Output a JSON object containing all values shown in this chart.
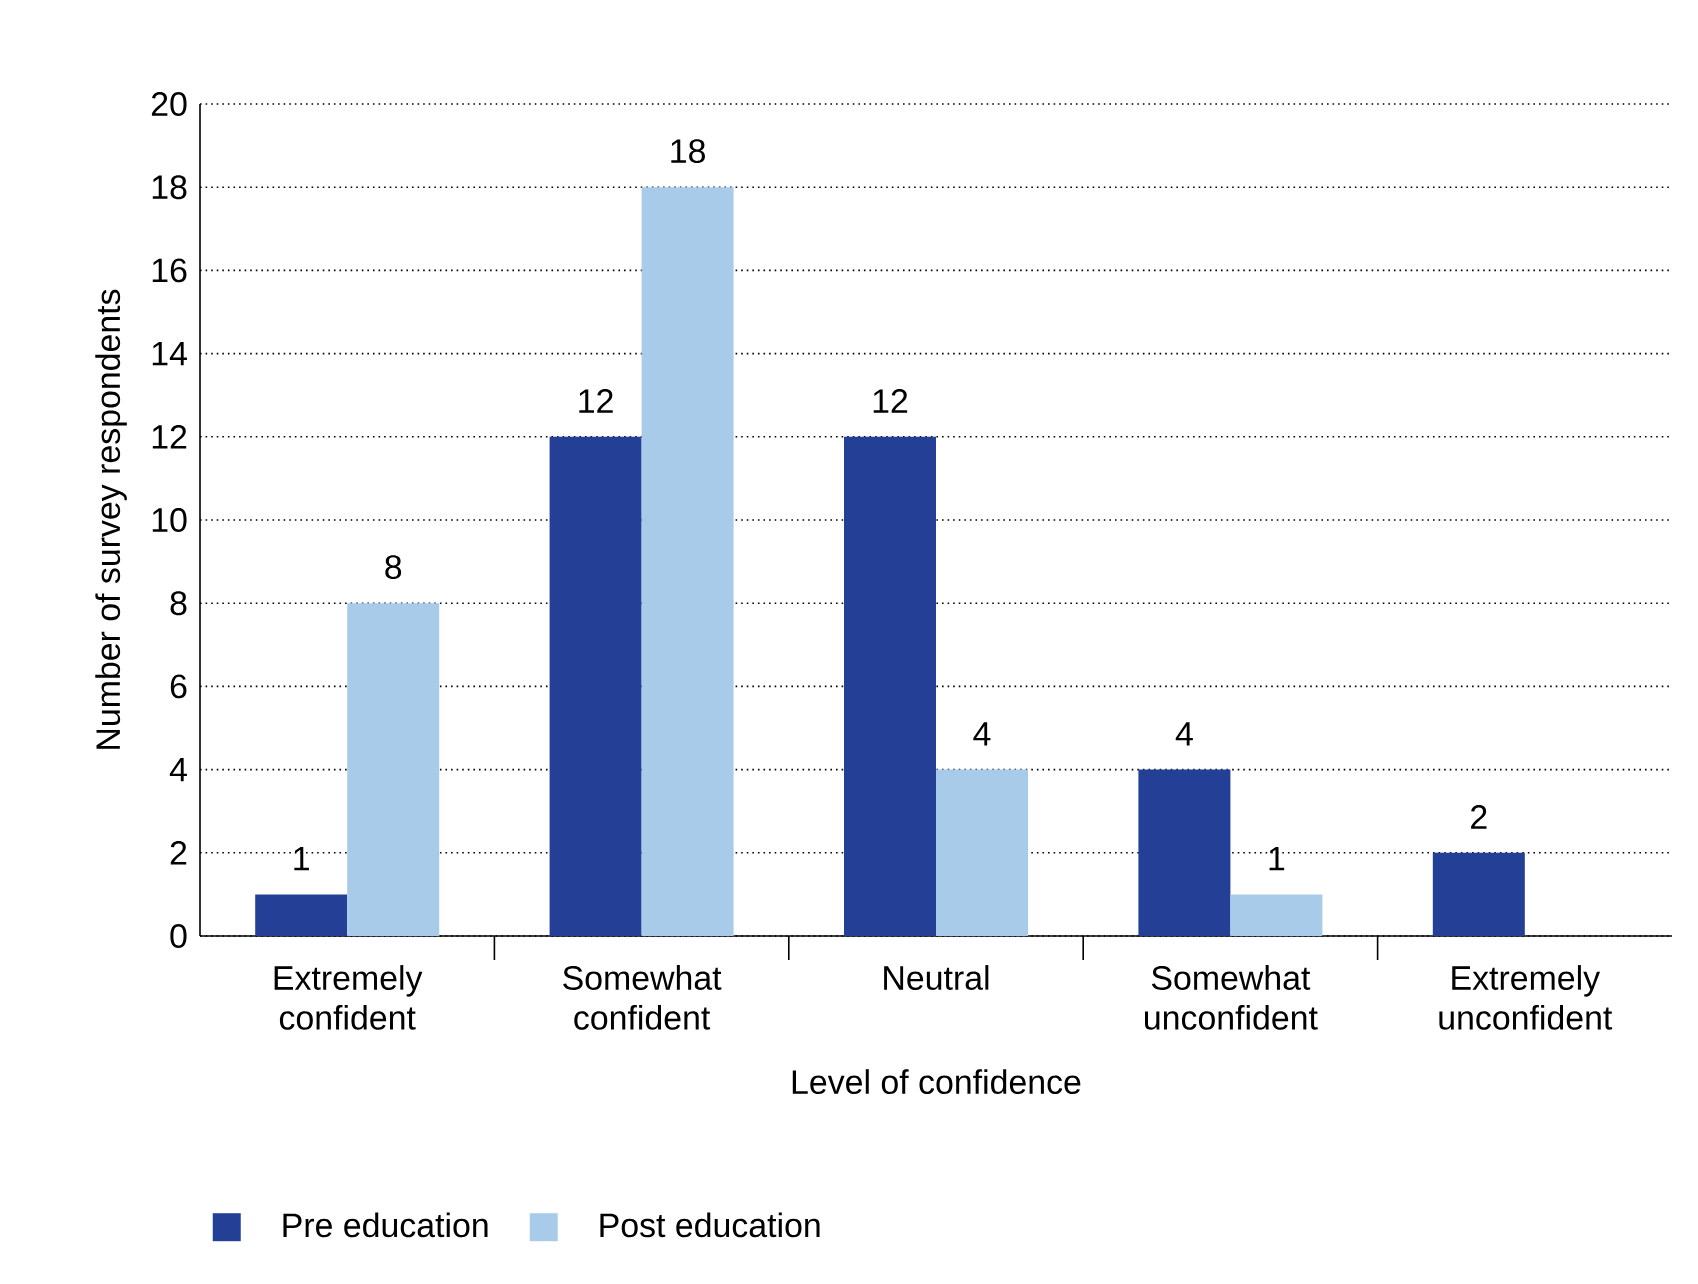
{
  "chart_data": {
    "type": "bar",
    "xlabel": "Level of confidence",
    "ylabel": "Number of survey respondents",
    "categories": [
      "Extremely confident",
      "Somewhat confident",
      "Neutral",
      "Somewhat unconfident",
      "Extremely unconfident"
    ],
    "series": [
      {
        "name": "Pre education",
        "color": "#233f96",
        "values": [
          1,
          12,
          12,
          4,
          2
        ],
        "value_labels": [
          "1",
          "12",
          "12",
          "4",
          "2"
        ]
      },
      {
        "name": "Post education",
        "color": "#a9cbea",
        "values": [
          8,
          18,
          4,
          1,
          0
        ],
        "value_labels": [
          "8",
          "18",
          "4",
          "1",
          null
        ]
      }
    ],
    "ylim": [
      0,
      20
    ],
    "yticks": [
      0,
      2,
      4,
      6,
      8,
      10,
      12,
      14,
      16,
      18,
      20
    ],
    "grid": "y",
    "legend": "bottom"
  }
}
